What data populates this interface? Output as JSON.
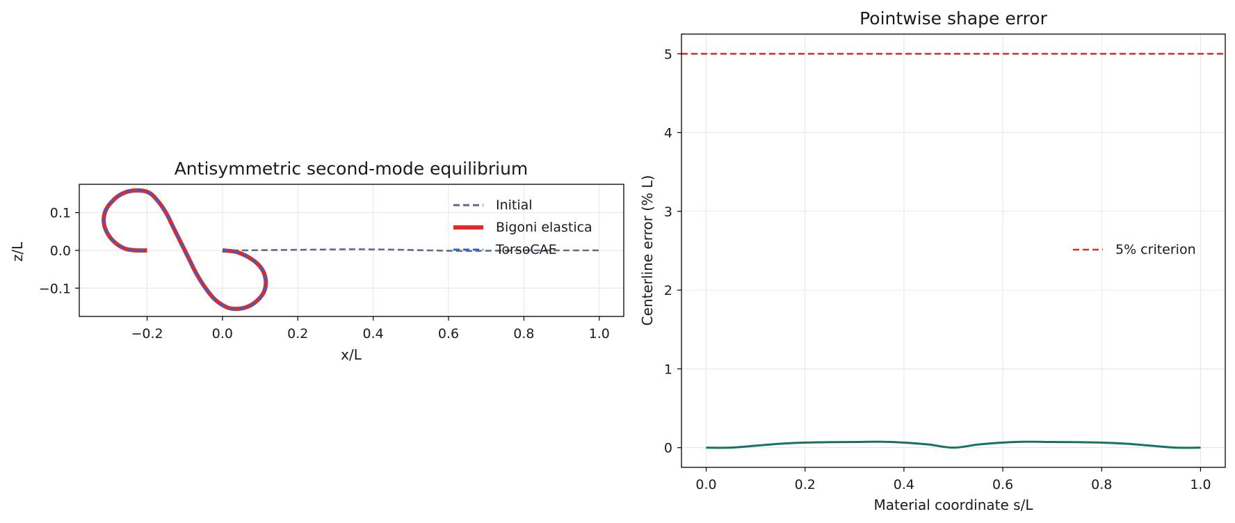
{
  "chart_data": [
    {
      "type": "line",
      "title": "Antisymmetric second-mode equilibrium",
      "xlabel": "x/L",
      "ylabel": "z/L",
      "xlim": [
        -0.38,
        1.065
      ],
      "ylim": [
        -0.175,
        0.175
      ],
      "xticks": [
        -0.2,
        0.0,
        0.2,
        0.4,
        0.6,
        0.8,
        1.0
      ],
      "yticks": [
        -0.1,
        0.0,
        0.1
      ],
      "aspect": "equal",
      "grid": true,
      "legend_position": "upper right",
      "colors": {
        "initial": "#5a6b8c",
        "bigoni": "#dd2a2a",
        "torsocae": "#2a63d8"
      },
      "series": [
        {
          "name": "Initial",
          "style": "dashed",
          "x": [
            0.0,
            0.05,
            0.1,
            0.15,
            0.2,
            0.25,
            0.3,
            0.35,
            0.4,
            0.45,
            0.5,
            0.55,
            0.6,
            0.65,
            0.7,
            0.75,
            0.8,
            0.85,
            0.9,
            0.95,
            1.0
          ],
          "y": [
            0.0,
            0.0,
            0.0005,
            0.001,
            0.0015,
            0.002,
            0.0025,
            0.003,
            0.0025,
            0.002,
            0.001,
            0.0,
            -0.001,
            -0.0015,
            -0.001,
            -0.0005,
            0.0,
            0.0,
            0.0,
            0.0,
            0.0
          ]
        },
        {
          "name": "Bigoni elastica",
          "style": "solid",
          "x": [
            0.0,
            0.04,
            0.08,
            0.105,
            0.115,
            0.11,
            0.09,
            0.065,
            0.035,
            0.01,
            -0.02,
            -0.045,
            -0.07,
            -0.09,
            -0.11,
            -0.13,
            -0.15,
            -0.175,
            -0.2,
            -0.24,
            -0.275,
            -0.305,
            -0.315,
            -0.31,
            -0.29,
            -0.26,
            -0.23,
            -0.2
          ],
          "y": [
            0.0,
            -0.005,
            -0.025,
            -0.05,
            -0.08,
            -0.11,
            -0.135,
            -0.15,
            -0.155,
            -0.15,
            -0.13,
            -0.1,
            -0.06,
            -0.02,
            0.02,
            0.06,
            0.1,
            0.135,
            0.155,
            0.158,
            0.145,
            0.115,
            0.085,
            0.055,
            0.025,
            0.005,
            0.0,
            0.0
          ]
        },
        {
          "name": "TorsoCAE",
          "style": "dashed",
          "x": [
            0.0,
            0.04,
            0.08,
            0.105,
            0.115,
            0.11,
            0.09,
            0.065,
            0.035,
            0.01,
            -0.02,
            -0.045,
            -0.07,
            -0.09,
            -0.11,
            -0.13,
            -0.15,
            -0.175,
            -0.2,
            -0.24,
            -0.275,
            -0.305,
            -0.315,
            -0.31,
            -0.29,
            -0.26,
            -0.23,
            -0.2
          ],
          "y": [
            0.0,
            -0.005,
            -0.025,
            -0.05,
            -0.08,
            -0.11,
            -0.135,
            -0.15,
            -0.155,
            -0.15,
            -0.13,
            -0.1,
            -0.06,
            -0.02,
            0.02,
            0.06,
            0.1,
            0.135,
            0.155,
            0.158,
            0.145,
            0.115,
            0.085,
            0.055,
            0.025,
            0.005,
            0.0,
            0.0
          ]
        }
      ]
    },
    {
      "type": "line",
      "title": "Pointwise shape error",
      "xlabel": "Material coordinate s/L",
      "ylabel": "Centerline error (% L)",
      "xlim": [
        -0.05,
        1.05
      ],
      "ylim": [
        -0.25,
        5.25
      ],
      "xticks": [
        0.0,
        0.2,
        0.4,
        0.6,
        0.8,
        1.0
      ],
      "yticks": [
        0,
        1,
        2,
        3,
        4,
        5
      ],
      "grid": true,
      "legend_position": "center right",
      "colors": {
        "error": "#127366",
        "criterion": "#dd2a2a"
      },
      "series": [
        {
          "name": "",
          "style": "solid",
          "x": [
            0.0,
            0.05,
            0.1,
            0.15,
            0.2,
            0.25,
            0.3,
            0.35,
            0.4,
            0.45,
            0.5,
            0.55,
            0.6,
            0.65,
            0.7,
            0.75,
            0.8,
            0.85,
            0.9,
            0.95,
            1.0
          ],
          "y": [
            0.0,
            0.0,
            0.025,
            0.05,
            0.065,
            0.07,
            0.072,
            0.075,
            0.065,
            0.04,
            0.0,
            0.04,
            0.065,
            0.075,
            0.072,
            0.07,
            0.065,
            0.05,
            0.025,
            0.0,
            0.0
          ]
        }
      ],
      "reference_lines": [
        {
          "name": "5% criterion",
          "y": 5,
          "style": "dashed"
        }
      ]
    }
  ]
}
